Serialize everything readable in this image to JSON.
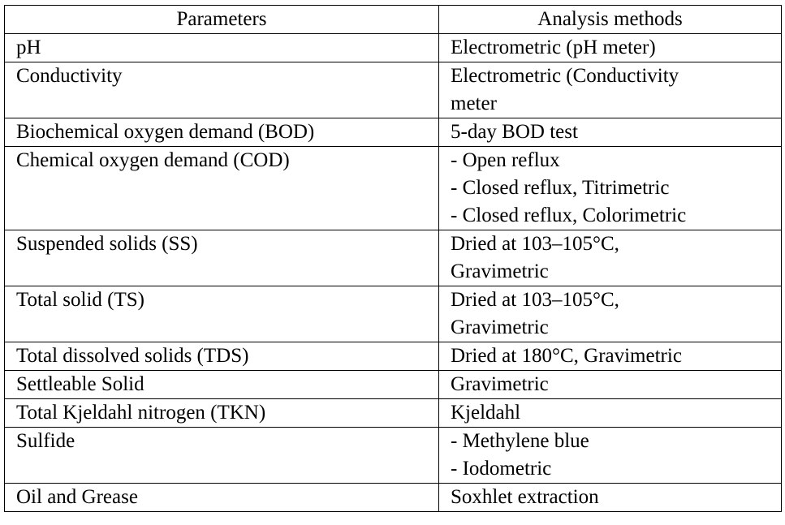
{
  "table": {
    "headers": [
      "Parameters",
      "Analysis methods"
    ],
    "rows": [
      {
        "parameter": "pH",
        "methods": [
          "Electrometric  (pH meter)"
        ]
      },
      {
        "parameter": "Conductivity",
        "methods": [
          "Electrometric  (Conductivity",
          "meter"
        ]
      },
      {
        "parameter": "Biochemical oxygen demand (BOD)",
        "methods": [
          "5-day BOD test"
        ]
      },
      {
        "parameter": "Chemical oxygen demand (COD)",
        "methods": [
          "- Open reflux",
          "- Closed reflux, Titrimetric",
          "- Closed reflux, Colorimetric"
        ]
      },
      {
        "parameter": "Suspended solids  (SS)",
        "methods": [
          "Dried at 103–105°C,",
          "Gravimetric"
        ]
      },
      {
        "parameter": "Total solid  (TS)",
        "methods": [
          "Dried at 103–105°C,",
          "Gravimetric"
        ]
      },
      {
        "parameter": "Total dissolved  solids  (TDS)",
        "methods": [
          "Dried at 180°C, Gravimetric"
        ]
      },
      {
        "parameter": "Settleable Solid",
        "methods": [
          "Gravimetric"
        ]
      },
      {
        "parameter": "Total Kjeldahl nitrogen (TKN)",
        "methods": [
          "Kjeldahl"
        ]
      },
      {
        "parameter": "Sulfide",
        "methods": [
          "- Methylene blue",
          "- Iodometric"
        ]
      },
      {
        "parameter": "Oil and Grease",
        "methods": [
          "Soxhlet extraction"
        ]
      }
    ]
  }
}
